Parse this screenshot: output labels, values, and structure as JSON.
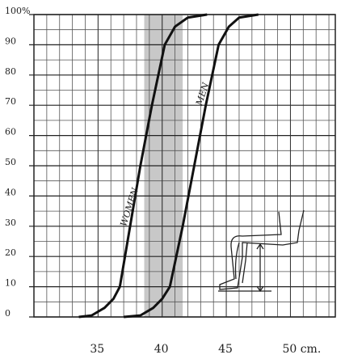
{
  "chart_data": {
    "type": "line",
    "xlim": [
      30,
      53.5
    ],
    "ylim": [
      0,
      100
    ],
    "xticks": [
      35,
      40,
      45,
      {
        "value": 50,
        "label": "50 cm."
      }
    ],
    "yticks": [
      0,
      10,
      20,
      30,
      40,
      50,
      60,
      70,
      80,
      90,
      {
        "value": 100,
        "label": "100%"
      }
    ],
    "grid": true,
    "shaded_band": [
      38.6,
      41.6
    ],
    "series": [
      {
        "name": "WOMEN",
        "color": "#111111",
        "x": [
          33.5,
          34.5,
          35.5,
          36.2,
          36.7,
          37.5,
          38.3,
          39.2,
          40.2,
          41,
          42,
          43.5
        ],
        "values": [
          0,
          0.5,
          3,
          6,
          10,
          30,
          50,
          70,
          90,
          96,
          99,
          100
        ]
      },
      {
        "name": "MEN",
        "color": "#111111",
        "x": [
          37,
          38.3,
          39.3,
          40,
          40.6,
          41.6,
          42.5,
          43.4,
          44.4,
          45.2,
          46,
          47.5
        ],
        "values": [
          0,
          0.5,
          3,
          6,
          10,
          30,
          50,
          70,
          90,
          96,
          99,
          100
        ]
      }
    ]
  }
}
